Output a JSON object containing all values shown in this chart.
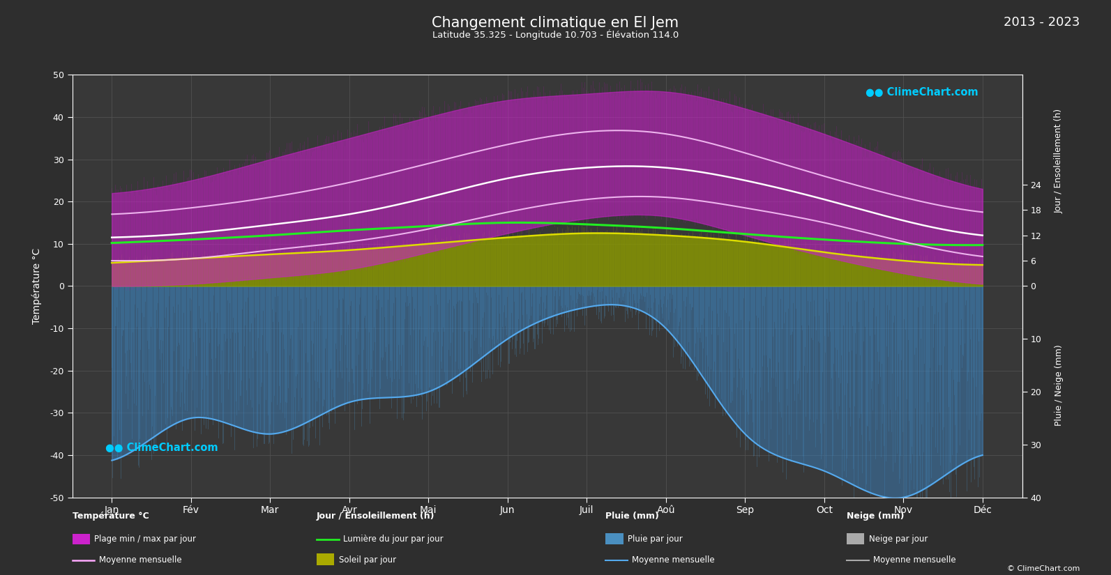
{
  "title": "Changement climatique en El Jem",
  "subtitle": "Latitude 35.325 - Longitude 10.703 - Élévation 114.0",
  "year_range": "2013 - 2023",
  "background_color": "#2e2e2e",
  "plot_bg_color": "#383838",
  "grid_color": "#505050",
  "months": [
    "Jan",
    "Fév",
    "Mar",
    "Avr",
    "Mai",
    "Jun",
    "Juil",
    "Aoû",
    "Sep",
    "Oct",
    "Nov",
    "Déc"
  ],
  "temp_ylim": [
    -50,
    50
  ],
  "temp_mean": [
    11.5,
    12.5,
    14.5,
    17.0,
    21.0,
    25.5,
    28.0,
    28.0,
    25.0,
    20.5,
    15.5,
    12.0
  ],
  "temp_max_mean": [
    17.0,
    18.5,
    21.0,
    24.5,
    29.0,
    33.5,
    36.5,
    36.0,
    31.5,
    26.0,
    21.0,
    17.5
  ],
  "temp_min_mean": [
    6.0,
    6.5,
    8.5,
    10.5,
    13.5,
    17.5,
    20.5,
    21.0,
    18.5,
    15.0,
    10.5,
    7.0
  ],
  "temp_max_abs": [
    22.0,
    25.0,
    30.0,
    35.0,
    40.0,
    44.0,
    45.5,
    46.0,
    42.0,
    36.0,
    29.0,
    23.0
  ],
  "temp_min_abs": [
    0.0,
    0.5,
    2.0,
    4.0,
    8.0,
    12.5,
    16.0,
    16.5,
    12.0,
    7.0,
    3.0,
    0.5
  ],
  "sunshine_mean": [
    5.5,
    6.5,
    7.5,
    8.5,
    10.0,
    11.5,
    12.5,
    12.0,
    10.5,
    8.0,
    6.0,
    5.0
  ],
  "daylight_mean": [
    10.2,
    11.0,
    12.0,
    13.2,
    14.2,
    15.0,
    14.6,
    13.7,
    12.3,
    11.0,
    10.0,
    9.7
  ],
  "rain_mean_mm": [
    33.0,
    25.0,
    28.0,
    22.0,
    20.0,
    10.0,
    4.0,
    8.0,
    28.0,
    35.0,
    40.0,
    32.0
  ],
  "rain_max_mm": [
    38.0,
    30.0,
    33.0,
    28.0,
    25.0,
    15.0,
    8.0,
    12.0,
    33.0,
    38.0,
    45.0,
    38.0
  ],
  "snow_mean_mm": [
    1.0,
    0.5,
    0.2,
    0.0,
    0.0,
    0.0,
    0.0,
    0.0,
    0.0,
    0.0,
    0.1,
    0.5
  ],
  "rain_scale": 1.25,
  "sun_scale": 1.0
}
